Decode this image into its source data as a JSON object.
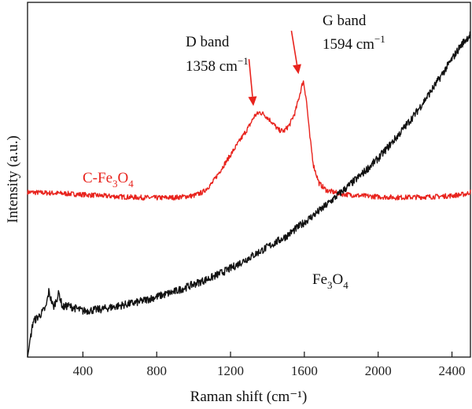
{
  "chart_data": {
    "type": "line",
    "title": "",
    "xlabel": "Raman shift (cm⁻¹)",
    "ylabel": "Intensity (a.u.)",
    "xlim": [
      100,
      2500
    ],
    "ylim": [
      0,
      1
    ],
    "x_ticks": [
      400,
      800,
      1200,
      1600,
      2000,
      2400
    ],
    "y_ticks_labeled": false,
    "grid": false,
    "legend": "none",
    "series": [
      {
        "name": "C-Fe3O4",
        "color": "#e8231d",
        "x": [
          100,
          200,
          300,
          400,
          500,
          600,
          700,
          800,
          900,
          1000,
          1050,
          1100,
          1150,
          1200,
          1250,
          1300,
          1330,
          1358,
          1380,
          1420,
          1460,
          1490,
          1520,
          1550,
          1575,
          1594,
          1610,
          1630,
          1650,
          1680,
          1720,
          1800,
          1900,
          2000,
          2100,
          2200,
          2300,
          2400,
          2480,
          2500
        ],
        "y": [
          0.465,
          0.463,
          0.461,
          0.458,
          0.455,
          0.452,
          0.45,
          0.449,
          0.45,
          0.455,
          0.465,
          0.49,
          0.53,
          0.57,
          0.61,
          0.65,
          0.68,
          0.69,
          0.685,
          0.665,
          0.64,
          0.637,
          0.655,
          0.69,
          0.74,
          0.78,
          0.73,
          0.62,
          0.54,
          0.49,
          0.47,
          0.46,
          0.455,
          0.452,
          0.45,
          0.451,
          0.452,
          0.455,
          0.46,
          0.466
        ]
      },
      {
        "name": "Fe3O4",
        "color": "#111111",
        "x": [
          100,
          130,
          170,
          200,
          215,
          240,
          270,
          290,
          320,
          400,
          500,
          600,
          700,
          800,
          900,
          1000,
          1100,
          1200,
          1300,
          1400,
          1500,
          1600,
          1700,
          1800,
          1900,
          2000,
          2100,
          2200,
          2300,
          2400,
          2450,
          2500
        ],
        "y": [
          0.0,
          0.1,
          0.12,
          0.14,
          0.185,
          0.14,
          0.18,
          0.14,
          0.145,
          0.13,
          0.135,
          0.145,
          0.155,
          0.17,
          0.185,
          0.205,
          0.225,
          0.25,
          0.28,
          0.31,
          0.34,
          0.38,
          0.42,
          0.465,
          0.51,
          0.56,
          0.62,
          0.685,
          0.76,
          0.84,
          0.88,
          0.91
        ]
      }
    ],
    "annotations": [
      {
        "line1": "D band",
        "line2_value": "1358 cm",
        "line2_sup": "−1",
        "target_x": 1358,
        "target_y": 0.69,
        "color": "#111111",
        "arrow_color": "#e8231d"
      },
      {
        "line1": "G band",
        "line2_value": "1594 cm",
        "line2_sup": "−1",
        "target_x": 1594,
        "target_y": 0.78,
        "color": "#111111",
        "arrow_color": "#e8231d"
      }
    ],
    "series_labels": [
      {
        "parts": [
          "C-Fe",
          "3",
          "O",
          "4"
        ],
        "color": "#e8231d"
      },
      {
        "parts": [
          "Fe",
          "3",
          "O",
          "4"
        ],
        "color": "#111111"
      }
    ]
  }
}
